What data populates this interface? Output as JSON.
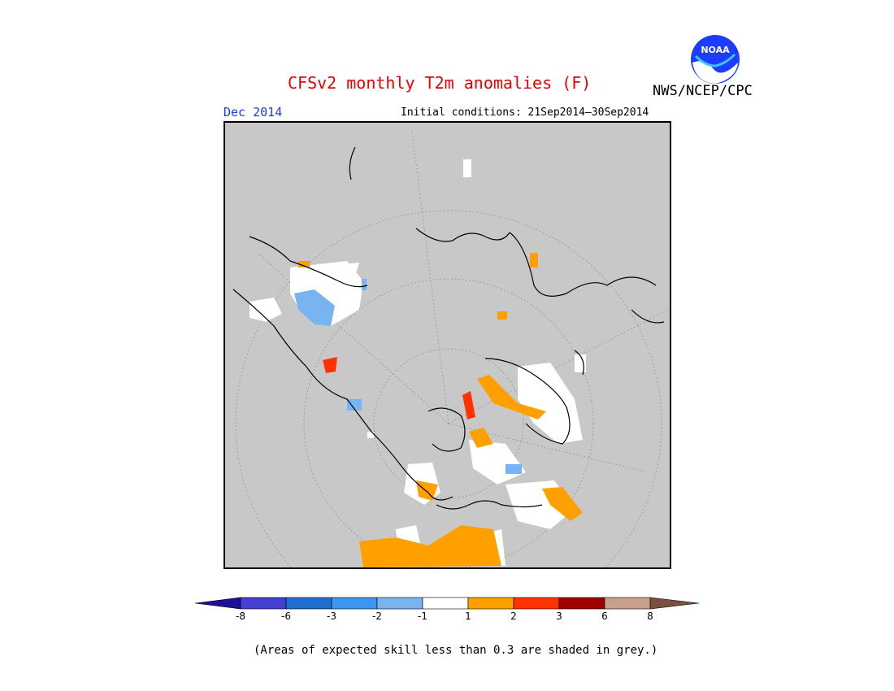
{
  "header": {
    "title": "CFSv2 monthly T2m anomalies (F)",
    "organization": "NWS/NCEP/CPC",
    "logo_text": "NOAA",
    "valid_month": "Dec 2014",
    "initial_conditions": "Initial conditions: 21Sep2014—30Sep2014"
  },
  "map": {
    "projection": "north-polar-stereographic",
    "background_color": "#c8c8c8"
  },
  "colorbar": {
    "colors": [
      "#1e0f96",
      "#4640d2",
      "#1e6ed2",
      "#3c96f0",
      "#78b4f0",
      "#ffffff",
      "#ffa000",
      "#ff3200",
      "#a00000",
      "#c8a08c",
      "#785040"
    ],
    "labels": [
      "-8",
      "-6",
      "-3",
      "-2",
      "-1",
      "1",
      "2",
      "3",
      "6",
      "8"
    ]
  },
  "footnote": "(Areas of expected skill less than 0.3 are shaded in grey.)"
}
